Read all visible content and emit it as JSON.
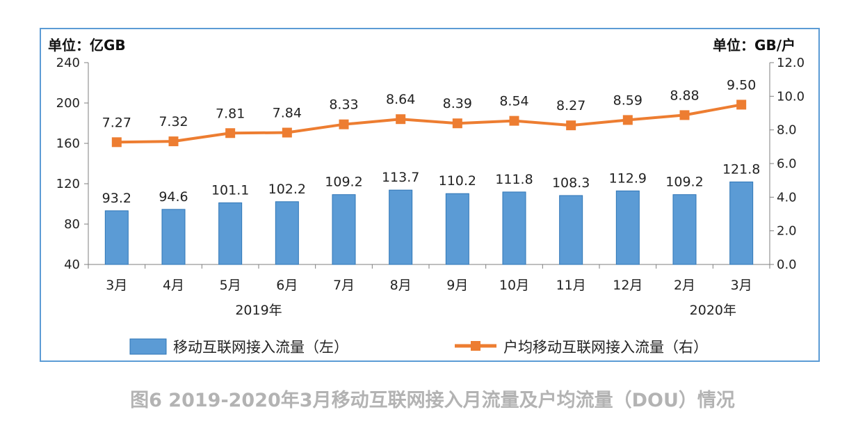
{
  "chart_data": {
    "type": "bar+line",
    "left_unit": "单位：亿GB",
    "right_unit": "单位：GB/户",
    "categories": [
      "3月",
      "4月",
      "5月",
      "6月",
      "7月",
      "8月",
      "9月",
      "10月",
      "11月",
      "12月",
      "2月",
      "3月"
    ],
    "year_labels": [
      {
        "text": "2019年",
        "category_index": 2.5
      },
      {
        "text": "2020年",
        "category_index": 10.5
      }
    ],
    "left_axis": {
      "min": 40,
      "max": 240,
      "ticks": [
        "40",
        "80",
        "120",
        "160",
        "200",
        "240"
      ]
    },
    "right_axis": {
      "min": 0,
      "max": 12,
      "ticks": [
        "0.0",
        "2.0",
        "4.0",
        "6.0",
        "8.0",
        "10.0",
        "12.0"
      ]
    },
    "series": [
      {
        "name": "移动互联网接入流量（左）",
        "type": "bar",
        "axis": "left",
        "color": "#5b9bd5",
        "values": [
          93.2,
          94.6,
          101.1,
          102.2,
          109.2,
          113.7,
          110.2,
          111.8,
          108.3,
          112.9,
          109.2,
          121.8
        ],
        "labels": [
          "93.2",
          "94.6",
          "101.1",
          "102.2",
          "109.2",
          "113.7",
          "110.2",
          "111.8",
          "108.3",
          "112.9",
          "109.2",
          "121.8"
        ]
      },
      {
        "name": "户均移动互联网接入流量（右）",
        "type": "line",
        "axis": "right",
        "color": "#ed7d31",
        "values": [
          7.27,
          7.32,
          7.81,
          7.84,
          8.33,
          8.64,
          8.39,
          8.54,
          8.27,
          8.59,
          8.88,
          9.5
        ],
        "labels": [
          "7.27",
          "7.32",
          "7.81",
          "7.84",
          "8.33",
          "8.64",
          "8.39",
          "8.54",
          "8.27",
          "8.59",
          "8.88",
          "9.50"
        ]
      }
    ],
    "legend_position": "bottom",
    "grid": false
  },
  "caption": "图6  2019-2020年3月移动互联网接入月流量及户均流量（DOU）情况"
}
